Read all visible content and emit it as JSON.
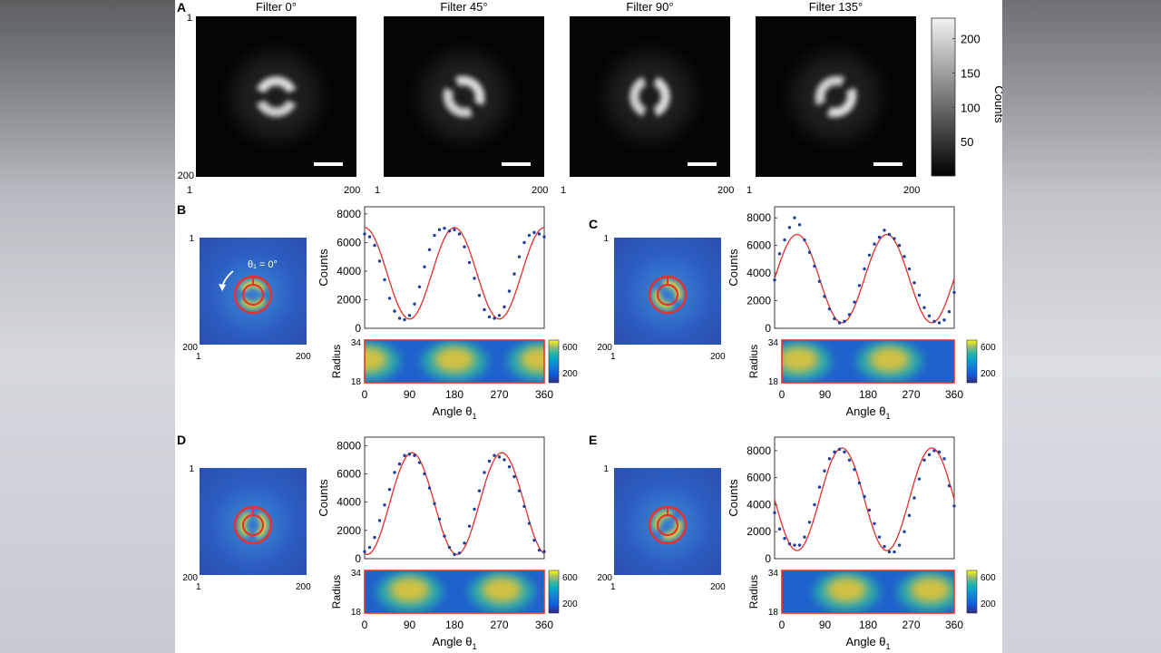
{
  "panel_letters": [
    "A",
    "B",
    "C",
    "D",
    "E"
  ],
  "filters": [
    {
      "title": "Filter 0°",
      "angle": 0
    },
    {
      "title": "Filter 45°",
      "angle": 45
    },
    {
      "title": "Filter 90°",
      "angle": 90
    },
    {
      "title": "Filter 135°",
      "angle": 135
    }
  ],
  "image_axis": {
    "min_label": "1",
    "max_label": "200"
  },
  "colorbar_gray": {
    "ticks": [
      "200",
      "150",
      "100",
      "50"
    ],
    "tick_values": [
      200,
      150,
      100,
      50
    ],
    "max": 230,
    "label": "Counts"
  },
  "theta_annotation": "θ₁ = 0°",
  "unroll_colorbar": {
    "ticks": [
      "600",
      "200"
    ],
    "tick_values": [
      600,
      200
    ],
    "min": 50,
    "max": 700
  },
  "chart_data": [
    {
      "panel": "B",
      "type": "scatter",
      "xlabel": "Angle θ",
      "xlabel_sub": "1",
      "ylabel": "Counts",
      "xlim": [
        0,
        360
      ],
      "ylim": [
        0,
        8500
      ],
      "xticks": [
        "0",
        "90",
        "180",
        "270",
        "360"
      ],
      "yticks": [
        "0",
        "2000",
        "4000",
        "6000",
        "8000"
      ],
      "fit": {
        "mean": 3850,
        "amp": 3200,
        "phase": 0
      },
      "points_x": [
        0,
        10,
        20,
        30,
        40,
        50,
        60,
        70,
        80,
        90,
        100,
        110,
        120,
        130,
        140,
        150,
        160,
        170,
        180,
        190,
        200,
        210,
        220,
        230,
        240,
        250,
        260,
        270,
        280,
        290,
        300,
        310,
        320,
        330,
        340,
        350,
        360
      ],
      "points_y": [
        6600,
        6400,
        5800,
        4700,
        3400,
        2100,
        1200,
        700,
        600,
        900,
        1700,
        2900,
        4300,
        5500,
        6500,
        6900,
        7000,
        6800,
        6900,
        6600,
        5700,
        4600,
        3500,
        2300,
        1300,
        800,
        700,
        900,
        1500,
        2600,
        3800,
        5000,
        6000,
        6500,
        6700,
        6600,
        6400
      ],
      "radius_label": "Radius",
      "radius_ticks": [
        "34",
        "18"
      ],
      "unroll_blobs": [
        5,
        180,
        352
      ]
    },
    {
      "panel": "C",
      "type": "scatter",
      "xlabel": "Angle θ",
      "xlabel_sub": "1",
      "ylabel": "Counts",
      "xlim": [
        0,
        360
      ],
      "ylim": [
        0,
        8800
      ],
      "xticks": [
        "0",
        "90",
        "180",
        "270",
        "360"
      ],
      "yticks": [
        "0",
        "2000",
        "4000",
        "6000",
        "8000"
      ],
      "fit": {
        "mean": 3600,
        "amp": 3200,
        "phase": 45
      },
      "points_x": [
        0,
        10,
        20,
        30,
        40,
        50,
        60,
        70,
        80,
        90,
        100,
        110,
        120,
        130,
        140,
        150,
        160,
        170,
        180,
        190,
        200,
        210,
        220,
        230,
        240,
        250,
        260,
        270,
        280,
        290,
        300,
        310,
        320,
        330,
        340,
        350,
        360
      ],
      "points_y": [
        3500,
        5400,
        6400,
        7300,
        8000,
        7500,
        6400,
        5500,
        4500,
        3400,
        2300,
        1400,
        700,
        400,
        500,
        1000,
        1900,
        3100,
        4300,
        5300,
        6100,
        6600,
        7100,
        6800,
        6500,
        6000,
        5200,
        4300,
        3300,
        2400,
        1500,
        900,
        500,
        400,
        600,
        1200,
        2600
      ],
      "radius_label": "Radius",
      "radius_ticks": [
        "34",
        "18"
      ],
      "unroll_blobs": [
        35,
        225
      ]
    },
    {
      "panel": "D",
      "type": "scatter",
      "xlabel": "Angle θ",
      "xlabel_sub": "1",
      "ylabel": "Counts",
      "xlim": [
        0,
        360
      ],
      "ylim": [
        0,
        8600
      ],
      "xticks": [
        "0",
        "90",
        "180",
        "270",
        "360"
      ],
      "yticks": [
        "0",
        "2000",
        "4000",
        "6000",
        "8000"
      ],
      "fit": {
        "mean": 3900,
        "amp": 3600,
        "phase": 95
      },
      "points_x": [
        0,
        10,
        20,
        30,
        40,
        50,
        60,
        70,
        80,
        90,
        100,
        110,
        120,
        130,
        140,
        150,
        160,
        170,
        180,
        190,
        200,
        210,
        220,
        230,
        240,
        250,
        260,
        270,
        280,
        290,
        300,
        310,
        320,
        330,
        340,
        350,
        360
      ],
      "points_y": [
        500,
        800,
        1500,
        2700,
        3800,
        4900,
        6100,
        6700,
        7300,
        7400,
        7300,
        6800,
        6000,
        5000,
        3900,
        2800,
        1600,
        800,
        300,
        400,
        1100,
        2300,
        3500,
        4800,
        6100,
        6900,
        7300,
        7200,
        7000,
        6500,
        5800,
        4800,
        3700,
        2500,
        1300,
        600,
        500
      ],
      "radius_label": "Radius",
      "radius_ticks": [
        "34",
        "18"
      ],
      "unroll_blobs": [
        90,
        275
      ]
    },
    {
      "panel": "E",
      "type": "scatter",
      "xlabel": "Angle θ",
      "xlabel_sub": "1",
      "ylabel": "Counts",
      "xlim": [
        0,
        360
      ],
      "ylim": [
        0,
        9000
      ],
      "xticks": [
        "0",
        "90",
        "180",
        "270",
        "360"
      ],
      "yticks": [
        "0",
        "2000",
        "4000",
        "6000",
        "8000"
      ],
      "fit": {
        "mean": 4400,
        "amp": 3800,
        "phase": 135
      },
      "points_x": [
        0,
        10,
        20,
        30,
        40,
        50,
        60,
        70,
        80,
        90,
        100,
        110,
        120,
        130,
        140,
        150,
        160,
        170,
        180,
        190,
        200,
        210,
        220,
        230,
        240,
        250,
        260,
        270,
        280,
        290,
        300,
        310,
        320,
        330,
        340,
        350,
        360
      ],
      "points_y": [
        3400,
        2200,
        1500,
        1100,
        1000,
        1000,
        1600,
        2700,
        4000,
        5300,
        6500,
        7400,
        7900,
        8100,
        7900,
        7300,
        6600,
        5600,
        4600,
        3600,
        2600,
        1600,
        900,
        500,
        500,
        1000,
        2000,
        3200,
        4500,
        5900,
        7300,
        7700,
        8000,
        7900,
        7400,
        5400,
        3900
      ],
      "radius_label": "Radius",
      "radius_ticks": [
        "34",
        "18"
      ],
      "unroll_blobs": [
        135,
        310
      ]
    }
  ]
}
